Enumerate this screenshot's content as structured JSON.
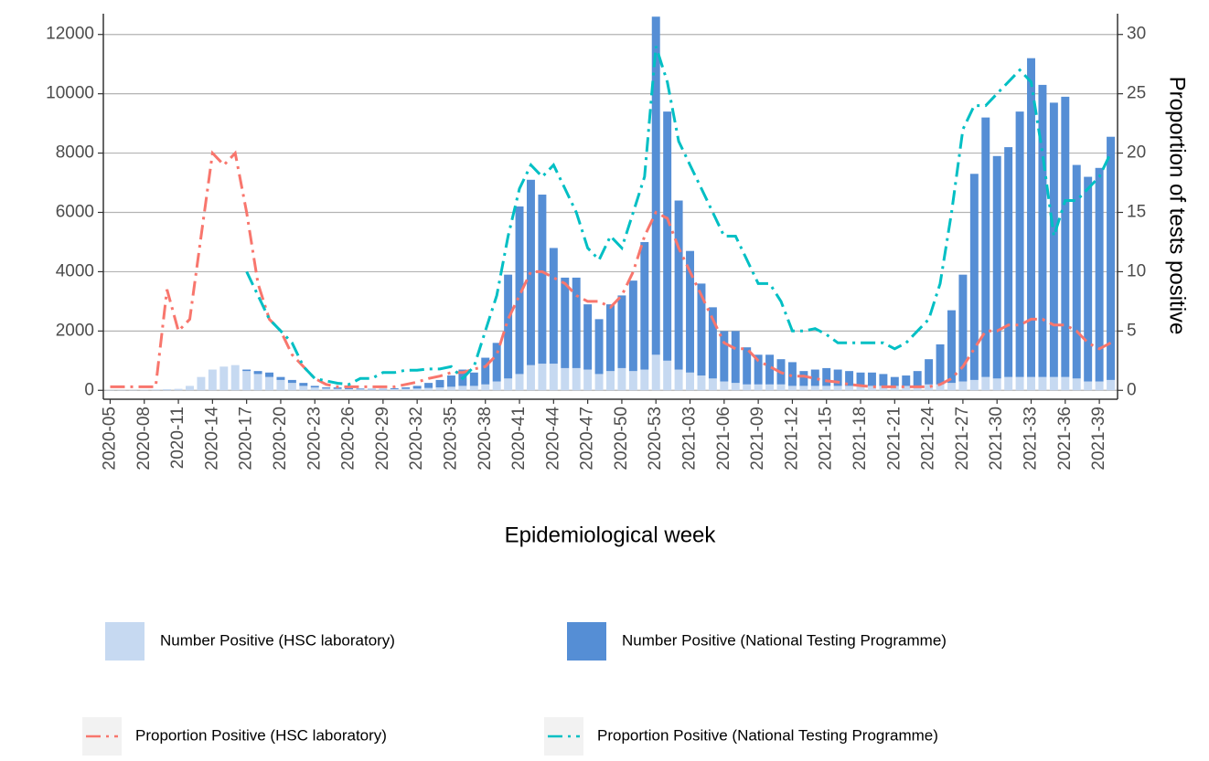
{
  "chart_data": {
    "type": "bar",
    "stacked": true,
    "legend": "bottom",
    "grid": true,
    "xlabel": "Epidemiological week",
    "y2label": "Proportion of tests positive",
    "categories": [
      "2020-05",
      null,
      null,
      "2020-08",
      null,
      null,
      "2020-11",
      null,
      null,
      "2020-14",
      null,
      null,
      "2020-17",
      null,
      null,
      "2020-20",
      null,
      null,
      "2020-23",
      null,
      null,
      "2020-26",
      null,
      null,
      "2020-29",
      null,
      null,
      "2020-32",
      null,
      null,
      "2020-35",
      null,
      null,
      "2020-38",
      null,
      null,
      "2020-41",
      null,
      null,
      "2020-44",
      null,
      null,
      "2020-47",
      null,
      null,
      "2020-50",
      null,
      null,
      "2020-53",
      null,
      null,
      "2021-03",
      null,
      null,
      "2021-06",
      null,
      null,
      "2021-09",
      null,
      null,
      "2021-12",
      null,
      null,
      "2021-15",
      null,
      null,
      "2021-18",
      null,
      null,
      "2021-21",
      null,
      null,
      "2021-24",
      null,
      null,
      "2021-27",
      null,
      null,
      "2021-30",
      null,
      null,
      "2021-33",
      null,
      null,
      "2021-36",
      null,
      null,
      "2021-39",
      null
    ],
    "ylim": [
      -300,
      12700
    ],
    "yticks": [
      0,
      2000,
      4000,
      6000,
      8000,
      10000,
      12000
    ],
    "y2lim": [
      -0.75,
      31.75
    ],
    "y2ticks": [
      0,
      5,
      10,
      15,
      20,
      25,
      30
    ],
    "series": [
      {
        "name": "Number Positive (HSC laboratory)",
        "type": "bar",
        "color": "#c6d9f1",
        "values": [
          10,
          10,
          10,
          20,
          30,
          40,
          50,
          150,
          450,
          700,
          800,
          850,
          650,
          550,
          450,
          350,
          250,
          150,
          100,
          60,
          50,
          40,
          30,
          30,
          30,
          40,
          50,
          60,
          80,
          100,
          120,
          150,
          150,
          200,
          300,
          400,
          550,
          850,
          900,
          900,
          750,
          750,
          700,
          550,
          650,
          750,
          650,
          700,
          1200,
          1000,
          700,
          600,
          500,
          400,
          300,
          250,
          200,
          200,
          200,
          200,
          150,
          150,
          150,
          150,
          150,
          150,
          150,
          150,
          150,
          150,
          150,
          150,
          200,
          200,
          250,
          300,
          350,
          450,
          400,
          450,
          450,
          450,
          450,
          450,
          450,
          400,
          300,
          300,
          350
        ]
      },
      {
        "name": "Number Positive (National Testing Programme)",
        "type": "bar",
        "color": "#558ed5",
        "values": [
          0,
          0,
          0,
          0,
          0,
          0,
          0,
          0,
          0,
          0,
          0,
          0,
          50,
          100,
          150,
          100,
          100,
          100,
          50,
          40,
          50,
          40,
          30,
          20,
          20,
          30,
          50,
          90,
          170,
          250,
          380,
          550,
          450,
          900,
          1300,
          3500,
          5650,
          6250,
          5700,
          3900,
          3050,
          3050,
          2200,
          1850,
          2250,
          2450,
          3050,
          4300,
          11400,
          8400,
          5700,
          4100,
          3100,
          2400,
          1700,
          1750,
          1250,
          1000,
          1000,
          850,
          800,
          500,
          550,
          600,
          550,
          500,
          450,
          450,
          400,
          300,
          350,
          500,
          850,
          1350,
          2450,
          3600,
          6950,
          8750,
          7500,
          7750,
          8950,
          10750,
          9850,
          9250,
          9450,
          7200,
          6900,
          7200,
          8200
        ]
      },
      {
        "name": "Proportion Positive (HSC laboratory)",
        "type": "line",
        "axis": "y2",
        "color": "#f8766d",
        "values": [
          0.3,
          0.3,
          0.3,
          0.3,
          0.3,
          8.5,
          5,
          6,
          13,
          20,
          19,
          20,
          15,
          9,
          6,
          5,
          3,
          2,
          1,
          0.5,
          0.3,
          0.3,
          0.3,
          0.3,
          0.3,
          0.3,
          0.5,
          0.7,
          1,
          1.2,
          1.5,
          1.5,
          1.8,
          2,
          3,
          6,
          8,
          10,
          10,
          9.5,
          9,
          8,
          7.5,
          7.5,
          7,
          8,
          10,
          13,
          15,
          14.5,
          12,
          10,
          8,
          6,
          4,
          3.5,
          3.5,
          2.5,
          2,
          1.5,
          1.2,
          1.2,
          1,
          0.8,
          0.7,
          0.5,
          0.4,
          0.3,
          0.3,
          0.3,
          0.3,
          0.3,
          0.3,
          0.5,
          1,
          2,
          3.5,
          5,
          5,
          5.5,
          5.5,
          6,
          6,
          5.5,
          5.5,
          5,
          4,
          3.5,
          4
        ]
      },
      {
        "name": "Proportion Positive (National Testing Programme)",
        "type": "line",
        "axis": "y2",
        "color": "#00bfc4",
        "values": [
          null,
          null,
          null,
          null,
          null,
          null,
          null,
          null,
          null,
          null,
          null,
          null,
          10,
          8,
          6,
          5,
          4,
          2,
          1,
          0.8,
          0.6,
          0.5,
          1,
          1,
          1.5,
          1.5,
          1.7,
          1.7,
          1.8,
          1.8,
          2,
          1,
          2,
          5,
          8,
          13,
          17,
          19,
          18,
          19,
          17,
          15,
          12,
          11,
          13,
          12,
          15,
          18,
          29,
          26,
          21,
          19,
          17,
          15,
          13,
          13,
          11,
          9,
          9,
          7.5,
          5,
          5,
          5.2,
          4.7,
          4,
          4,
          4,
          4,
          4,
          3.5,
          4,
          5,
          6,
          9,
          15,
          22,
          24,
          24,
          25,
          26,
          27,
          26,
          20,
          13,
          16,
          16,
          17,
          18,
          20
        ]
      }
    ]
  }
}
